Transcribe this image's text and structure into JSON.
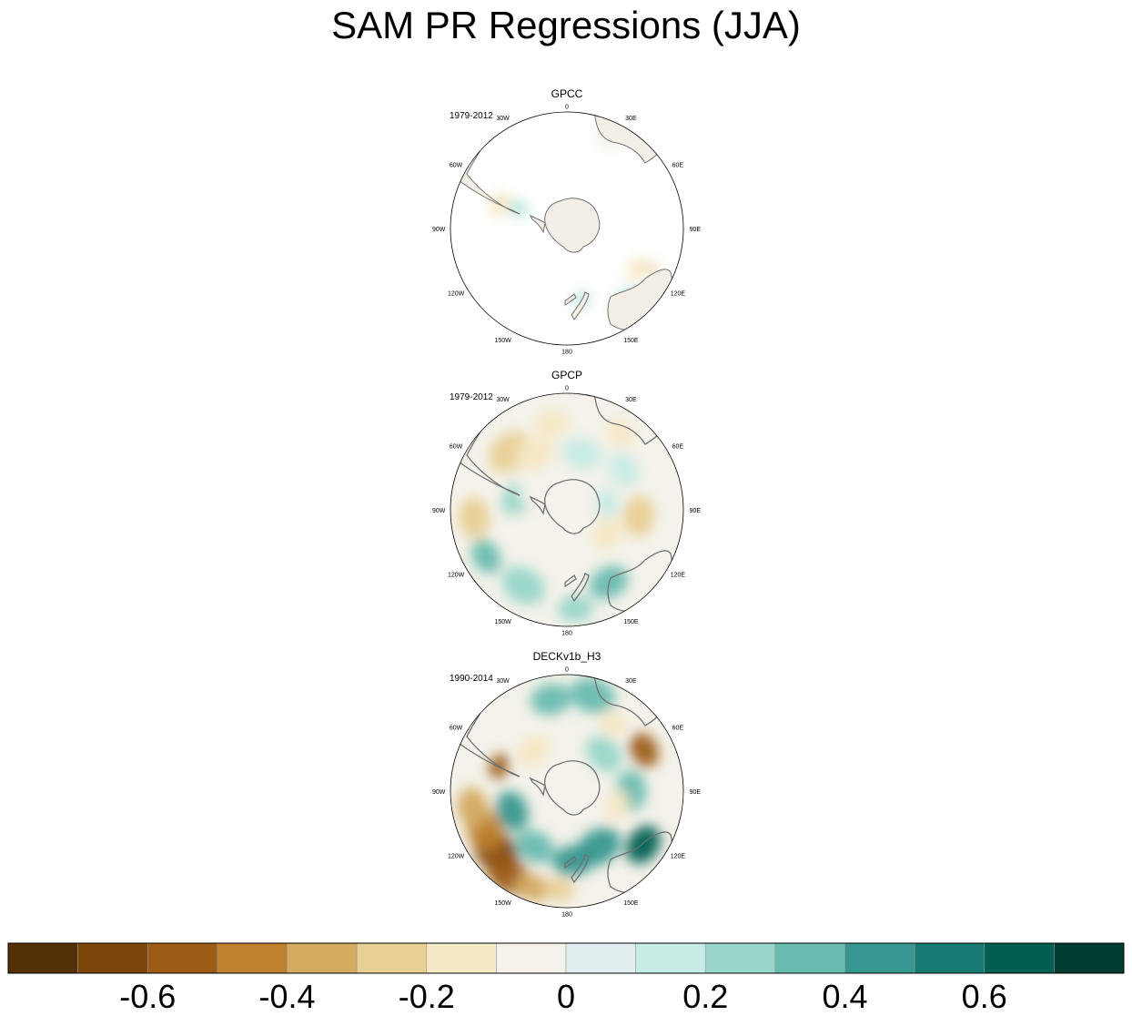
{
  "title": "SAM PR Regressions (JJA)",
  "colors": {
    "land": "#f3efe6",
    "coast": "#707070",
    "frame": "#000000",
    "ocean_blank": "#ffffff"
  },
  "chart_data": [
    {
      "type": "heatmap",
      "projection": "south-polar-stereographic",
      "dataset": "GPCC",
      "period": "1979-2012",
      "coverage": "land-only",
      "longitude_labels": [
        "0",
        "30E",
        "60E",
        "90E",
        "120E",
        "150E",
        "180",
        "150W",
        "120W",
        "90W",
        "60W",
        "30W"
      ],
      "features": [
        {
          "lon": -70,
          "r": 0.62,
          "value": -0.2,
          "size": 0.05
        },
        {
          "lon": -68,
          "r": 0.48,
          "value": 0.2,
          "size": 0.03
        },
        {
          "lon": -66,
          "r": 0.4,
          "value": 0.1,
          "size": 0.03
        },
        {
          "lon": 25,
          "r": 0.86,
          "value": -0.1,
          "size": 0.06
        },
        {
          "lon": 120,
          "r": 0.7,
          "value": -0.2,
          "size": 0.05
        },
        {
          "lon": 140,
          "r": 0.82,
          "value": 0.1,
          "size": 0.07
        },
        {
          "lon": 168,
          "r": 0.62,
          "value": 0.2,
          "size": 0.03
        },
        {
          "lon": 115,
          "r": 0.82,
          "value": -0.4,
          "size": 0.02
        }
      ]
    },
    {
      "type": "heatmap",
      "projection": "south-polar-stereographic",
      "dataset": "GPCP",
      "period": "1979-2012",
      "coverage": "global",
      "longitude_labels": [
        "0",
        "30E",
        "60E",
        "90E",
        "120E",
        "150E",
        "180",
        "150W",
        "120W",
        "90W",
        "60W",
        "30W"
      ],
      "features": [
        {
          "lon": -45,
          "r": 0.7,
          "value": -0.3,
          "size": 0.09
        },
        {
          "lon": -30,
          "r": 0.55,
          "value": -0.2,
          "size": 0.08
        },
        {
          "lon": -10,
          "r": 0.75,
          "value": -0.15,
          "size": 0.07
        },
        {
          "lon": 15,
          "r": 0.5,
          "value": 0.1,
          "size": 0.08
        },
        {
          "lon": 55,
          "r": 0.6,
          "value": 0.1,
          "size": 0.07
        },
        {
          "lon": 95,
          "r": 0.62,
          "value": -0.3,
          "size": 0.08
        },
        {
          "lon": 120,
          "r": 0.4,
          "value": -0.15,
          "size": 0.07
        },
        {
          "lon": 150,
          "r": 0.72,
          "value": 0.3,
          "size": 0.08
        },
        {
          "lon": 175,
          "r": 0.85,
          "value": 0.2,
          "size": 0.07
        },
        {
          "lon": -150,
          "r": 0.75,
          "value": 0.25,
          "size": 0.09
        },
        {
          "lon": -120,
          "r": 0.8,
          "value": 0.3,
          "size": 0.07
        },
        {
          "lon": -95,
          "r": 0.8,
          "value": -0.3,
          "size": 0.08
        },
        {
          "lon": -80,
          "r": 0.45,
          "value": 0.25,
          "size": 0.07
        },
        {
          "lon": -60,
          "r": 0.35,
          "value": -0.1,
          "size": 0.06
        },
        {
          "lon": -110,
          "r": 0.45,
          "value": -0.1,
          "size": 0.06
        },
        {
          "lon": 80,
          "r": 0.35,
          "value": 0.15,
          "size": 0.06
        },
        {
          "lon": 35,
          "r": 0.8,
          "value": -0.15,
          "size": 0.06
        }
      ]
    },
    {
      "type": "heatmap",
      "projection": "south-polar-stereographic",
      "dataset": "DECKv1b_H3",
      "period": "1990-2014",
      "coverage": "global",
      "longitude_labels": [
        "0",
        "30E",
        "60E",
        "90E",
        "120E",
        "150E",
        "180",
        "150W",
        "120W",
        "90W",
        "60W",
        "30W"
      ],
      "features": [
        {
          "lon": -130,
          "r": 0.8,
          "value": -0.7,
          "size": 0.1
        },
        {
          "lon": -145,
          "r": 0.88,
          "value": -0.6,
          "size": 0.09
        },
        {
          "lon": -115,
          "r": 0.78,
          "value": -0.5,
          "size": 0.09
        },
        {
          "lon": -100,
          "r": 0.82,
          "value": -0.4,
          "size": 0.08
        },
        {
          "lon": -160,
          "r": 0.88,
          "value": -0.4,
          "size": 0.07
        },
        {
          "lon": -70,
          "r": 0.62,
          "value": -0.6,
          "size": 0.05
        },
        {
          "lon": 62,
          "r": 0.75,
          "value": -0.6,
          "size": 0.07
        },
        {
          "lon": 15,
          "r": 0.85,
          "value": 0.35,
          "size": 0.09
        },
        {
          "lon": -10,
          "r": 0.8,
          "value": 0.3,
          "size": 0.08
        },
        {
          "lon": 125,
          "r": 0.8,
          "value": 0.6,
          "size": 0.08
        },
        {
          "lon": 150,
          "r": 0.55,
          "value": 0.4,
          "size": 0.09
        },
        {
          "lon": 175,
          "r": 0.6,
          "value": 0.45,
          "size": 0.08
        },
        {
          "lon": -150,
          "r": 0.55,
          "value": 0.3,
          "size": 0.08
        },
        {
          "lon": -110,
          "r": 0.5,
          "value": 0.45,
          "size": 0.08
        },
        {
          "lon": 90,
          "r": 0.55,
          "value": 0.3,
          "size": 0.08
        },
        {
          "lon": 45,
          "r": 0.45,
          "value": 0.25,
          "size": 0.08
        },
        {
          "lon": -40,
          "r": 0.45,
          "value": -0.15,
          "size": 0.07
        },
        {
          "lon": 105,
          "r": 0.45,
          "value": -0.2,
          "size": 0.06
        },
        {
          "lon": -175,
          "r": 0.85,
          "value": -0.3,
          "size": 0.06
        },
        {
          "lon": 35,
          "r": 0.7,
          "value": -0.2,
          "size": 0.06
        }
      ]
    }
  ],
  "colorbar": {
    "label_values": [
      -0.6,
      -0.4,
      -0.2,
      0,
      0.2,
      0.4,
      0.6
    ],
    "labels": [
      "-0.6",
      "-0.4",
      "-0.2",
      "0",
      "0.2",
      "0.4",
      "0.6"
    ],
    "bins": [
      -0.8,
      -0.7,
      -0.6,
      -0.5,
      -0.4,
      -0.3,
      -0.2,
      -0.1,
      0,
      0.1,
      0.2,
      0.3,
      0.4,
      0.5,
      0.6,
      0.7,
      0.8
    ],
    "colors": [
      "#543005",
      "#7c4509",
      "#9c5c15",
      "#bf812d",
      "#d4ab61",
      "#e8cf93",
      "#f5e8c5",
      "#f4f2ea",
      "#e2efee",
      "#c7ebe5",
      "#98d6ca",
      "#68bbaf",
      "#35978f",
      "#157a71",
      "#015f51",
      "#003c30"
    ]
  }
}
